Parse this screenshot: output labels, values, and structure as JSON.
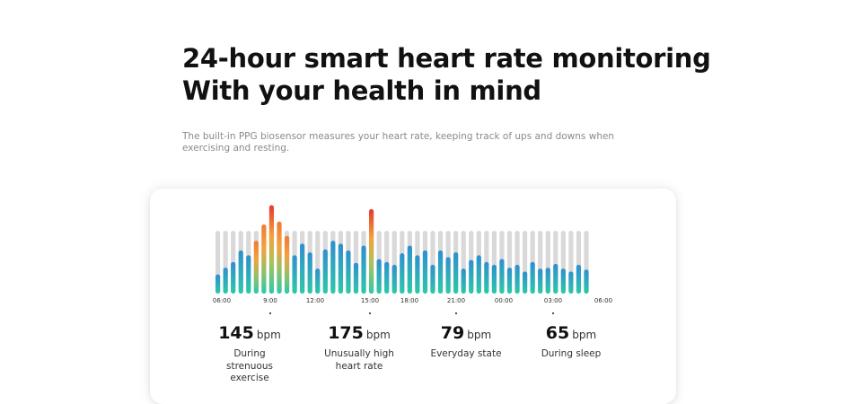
{
  "headline": {
    "line1": "24-hour smart heart rate monitoring",
    "line2": "With your health in mind"
  },
  "description": "The built-in PPG biosensor measures your heart rate, keeping track of ups and downs when exercising and resting.",
  "colors": {
    "track": "#d9d9d9",
    "teal_bottom": "#2ec8a8",
    "blue_top": "#2f8fd0",
    "orange": "#f5a23a",
    "red": "#e23b2c"
  },
  "chart_data": {
    "type": "bar",
    "x_ticks": [
      "06:00",
      "9:00",
      "12:00",
      "15:00",
      "18:00",
      "21:00",
      "00:00",
      "03:00",
      "06:00"
    ],
    "values": [
      0.2,
      0.27,
      0.33,
      0.45,
      0.4,
      0.55,
      0.72,
      0.92,
      0.75,
      0.6,
      0.4,
      0.52,
      0.43,
      0.26,
      0.46,
      0.55,
      0.52,
      0.45,
      0.32,
      0.5,
      0.88,
      0.36,
      0.33,
      0.3,
      0.42,
      0.5,
      0.4,
      0.45,
      0.3,
      0.45,
      0.38,
      0.43,
      0.26,
      0.35,
      0.4,
      0.33,
      0.3,
      0.36,
      0.27,
      0.3,
      0.23,
      0.33,
      0.26,
      0.27,
      0.31,
      0.26,
      0.23,
      0.3,
      0.25
    ],
    "marked_points": [
      "145 bpm",
      "175 bpm",
      "79 bpm",
      "65 bpm"
    ]
  },
  "stats": [
    {
      "value": "145",
      "unit": "bpm",
      "desc": "During strenuous exercise"
    },
    {
      "value": "175",
      "unit": "bpm",
      "desc": "Unusually high heart rate"
    },
    {
      "value": "79",
      "unit": "bpm",
      "desc": "Everyday state"
    },
    {
      "value": "65",
      "unit": "bpm",
      "desc": "During sleep"
    }
  ]
}
